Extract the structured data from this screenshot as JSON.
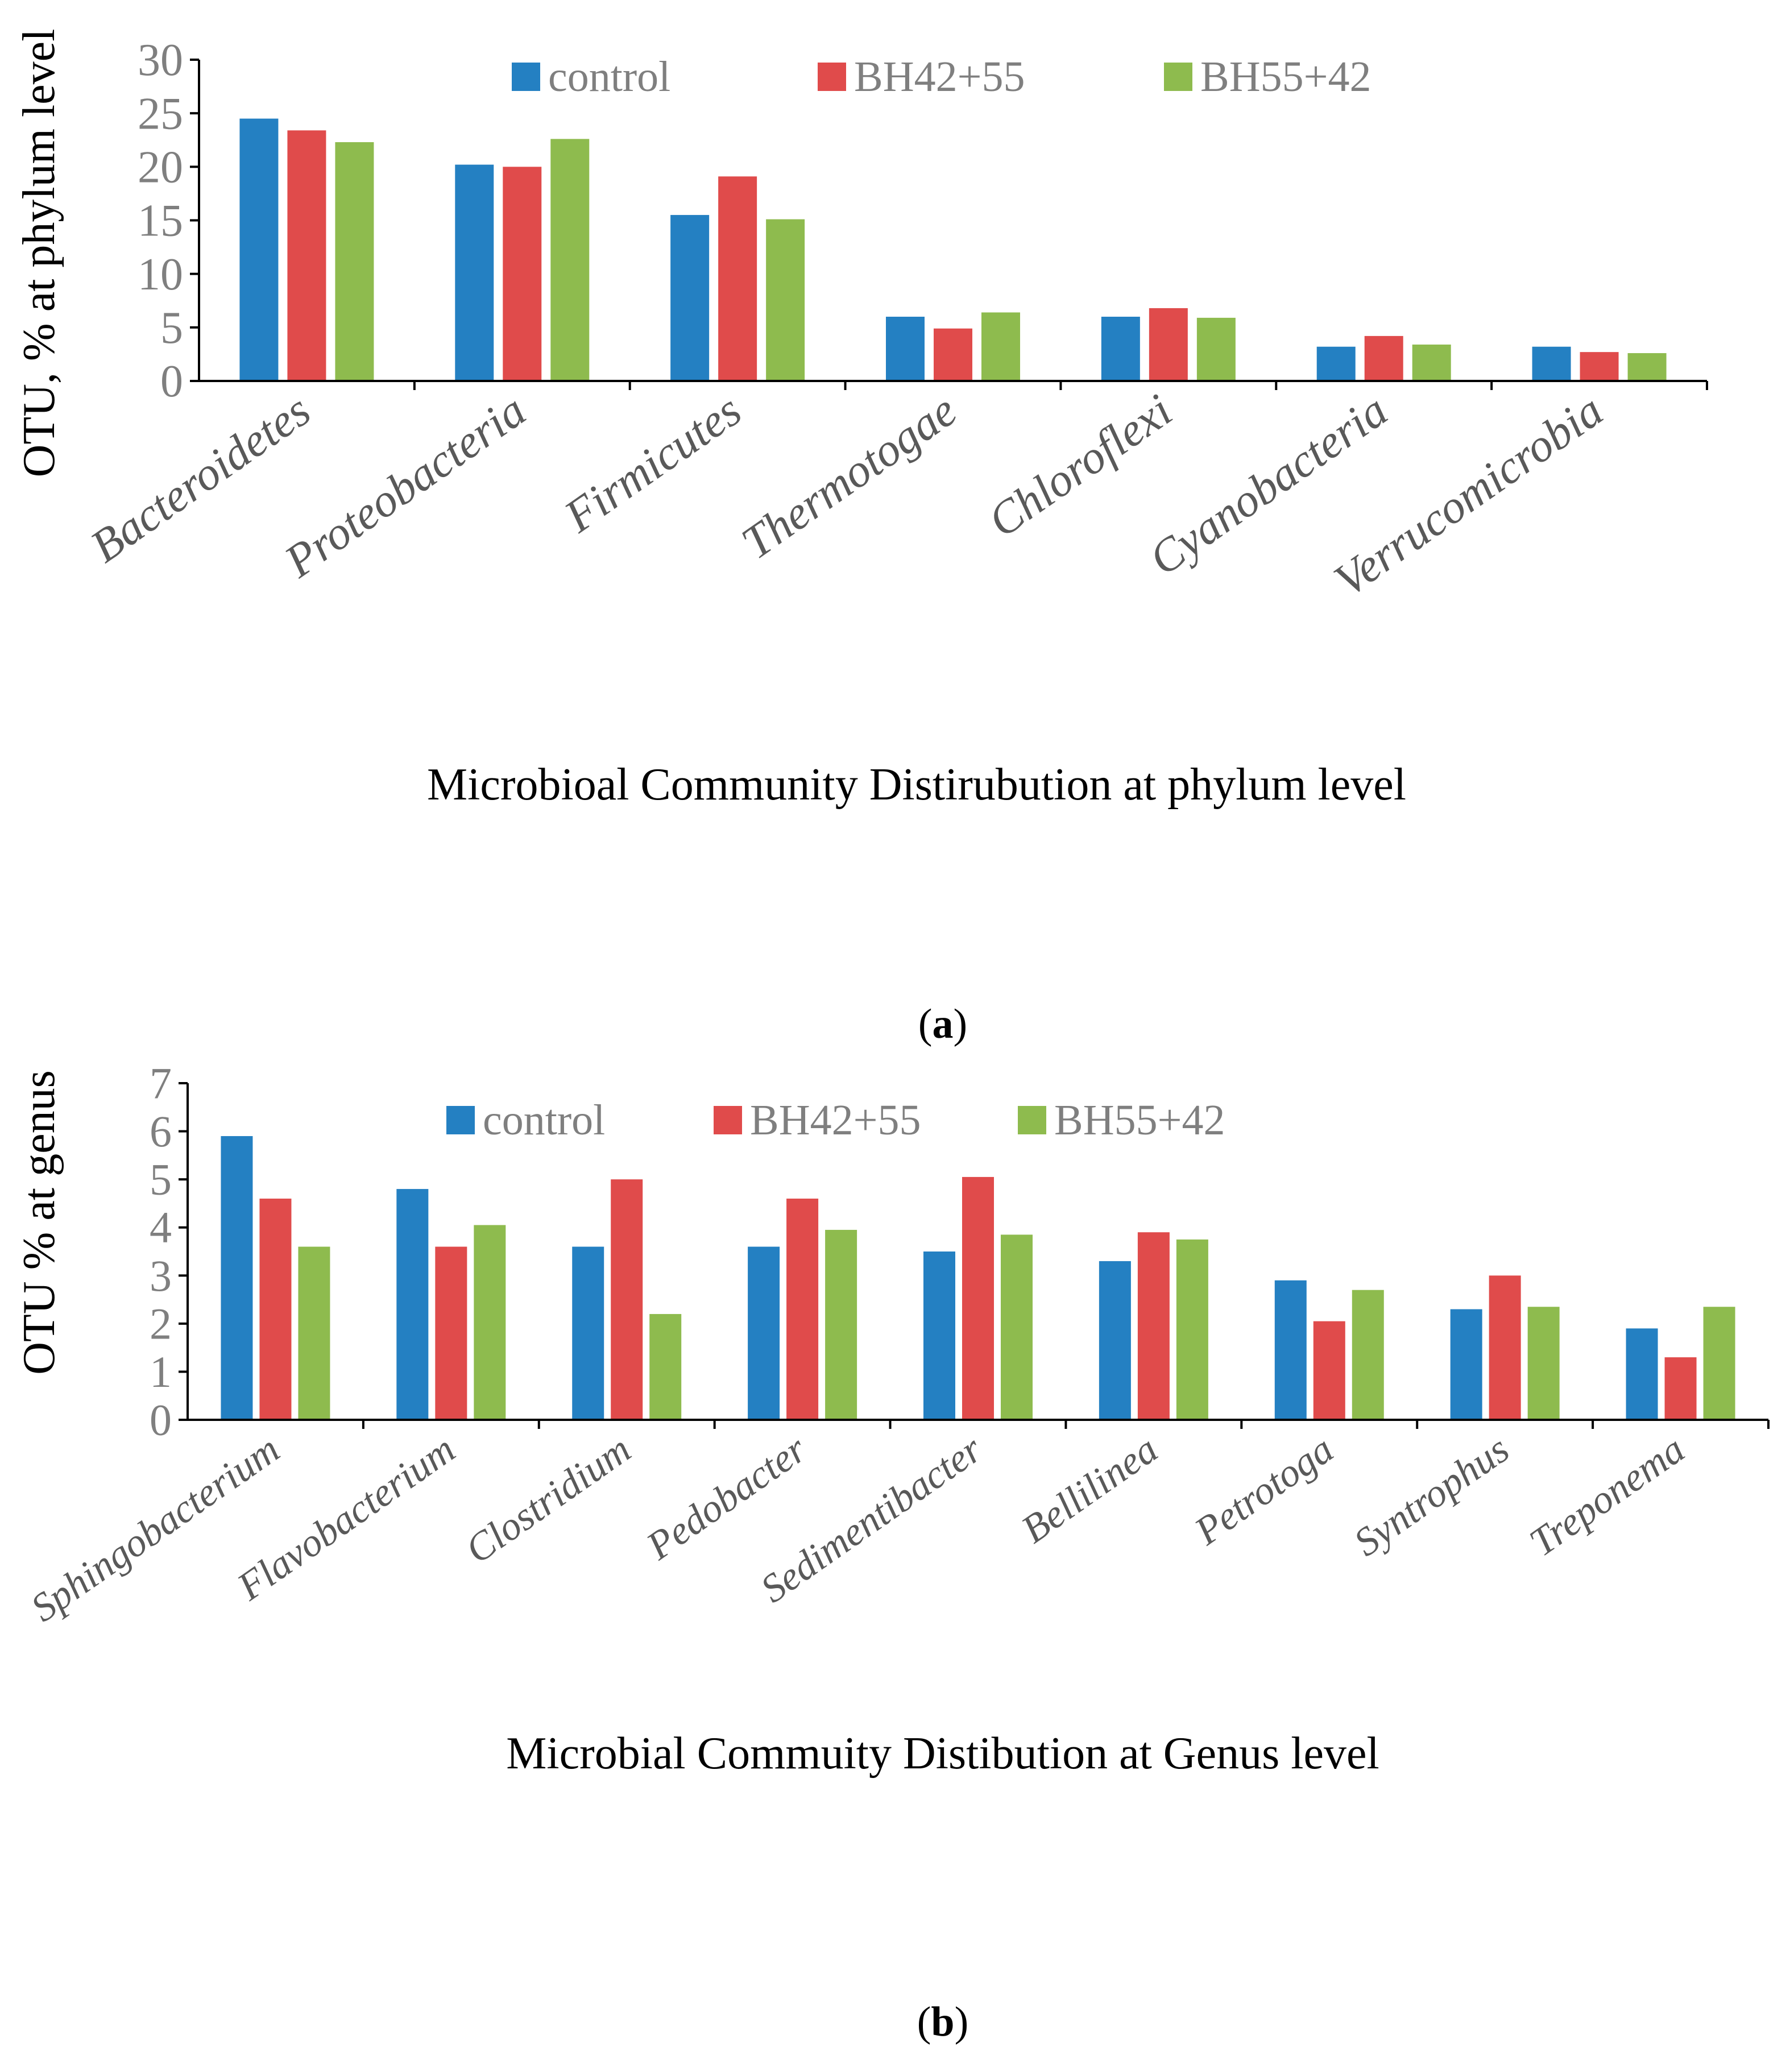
{
  "colors": {
    "control": "#2480C2",
    "BH42+55": "#E04B4B",
    "BH55+42": "#8EBB4E",
    "axis": "#000000",
    "tick_text": "#7F7F7F"
  },
  "chart_data": [
    {
      "id": "a",
      "type": "bar",
      "panel_label": "a",
      "ylabel": "OTU, % at phylum level",
      "xlabel": "Microbioal Community Distirubution at phylum level",
      "ylim": [
        0,
        30
      ],
      "yticks": [
        "0",
        "5",
        "10",
        "15",
        "20",
        "25",
        "30"
      ],
      "legend_position": "top",
      "categories": [
        "Bacteroidetes",
        "Proteobacteria",
        "Firmicutes",
        "Thermotogae",
        "Chloroflexi",
        "Cyanobacteria",
        "Verrucomicrobia"
      ],
      "series": [
        {
          "name": "control",
          "values": [
            24.5,
            20.2,
            15.5,
            6.0,
            6.0,
            3.2,
            3.2
          ]
        },
        {
          "name": "BH42+55",
          "values": [
            23.4,
            20.0,
            19.1,
            4.9,
            6.8,
            4.2,
            2.7
          ]
        },
        {
          "name": "BH55+42",
          "values": [
            22.3,
            22.6,
            15.1,
            6.4,
            5.9,
            3.4,
            2.6
          ]
        }
      ]
    },
    {
      "id": "b",
      "type": "bar",
      "panel_label": "b",
      "ylabel": "OTU % at genus",
      "xlabel": "Microbial Commuity Distibution at Genus level",
      "ylim": [
        0,
        7
      ],
      "yticks": [
        "0",
        "1",
        "2",
        "3",
        "4",
        "5",
        "6",
        "7"
      ],
      "legend_position": "top",
      "categories": [
        "Sphingobacterium",
        "Flavobacterium",
        "Clostridium",
        "Pedobacter",
        "Sedimentibacter",
        "Bellilinea",
        "Petrotoga",
        "Syntrophus",
        "Treponema"
      ],
      "series": [
        {
          "name": "control",
          "values": [
            5.9,
            4.8,
            3.6,
            3.6,
            3.5,
            3.3,
            2.9,
            2.3,
            1.9
          ]
        },
        {
          "name": "BH42+55",
          "values": [
            4.6,
            3.6,
            5.0,
            4.6,
            5.05,
            3.9,
            2.05,
            3.0,
            1.3
          ]
        },
        {
          "name": "BH55+42",
          "values": [
            3.6,
            4.05,
            2.2,
            3.95,
            3.85,
            3.75,
            2.7,
            2.35,
            2.35
          ]
        }
      ]
    }
  ]
}
